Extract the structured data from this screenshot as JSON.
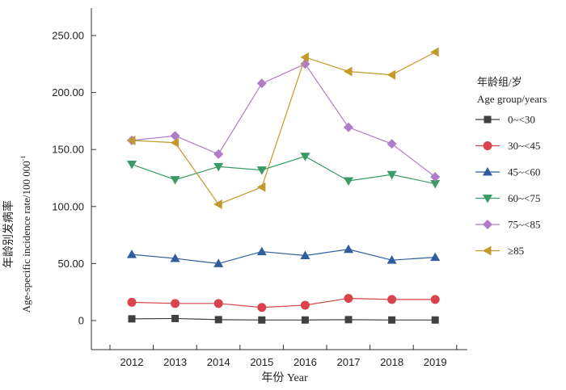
{
  "chart_data": {
    "type": "line",
    "xlabel": "年份 Year",
    "ylabel_cn": "年龄别发病率",
    "ylabel_en": "Age-specific incidence rate/100 000",
    "ylabel_sup": "-1",
    "x": [
      "2012",
      "2013",
      "2014",
      "2015",
      "2016",
      "2017",
      "2018",
      "2019"
    ],
    "ylim": [
      -25,
      275
    ],
    "yticks": [
      0,
      50,
      100,
      150,
      200,
      250
    ],
    "ytick_labels": [
      "0",
      "50.00",
      "100.00",
      "150.00",
      "200.00",
      "250.00"
    ],
    "grid": false,
    "legend": {
      "placement": "right",
      "title_cn": "年龄组/岁",
      "title_en": "Age group/years"
    },
    "series": [
      {
        "name": "0~<30",
        "marker": "square",
        "color": "#404040",
        "values": [
          1.5,
          1.8,
          0.8,
          0.5,
          0.5,
          0.8,
          0.5,
          0.5
        ]
      },
      {
        "name": "30~<45",
        "marker": "circle",
        "color": "#d9434b",
        "values": [
          16,
          15,
          15,
          11.5,
          13.5,
          19.5,
          18.5,
          18.5
        ]
      },
      {
        "name": "45~<60",
        "marker": "triangle-up",
        "color": "#2f5d9e",
        "values": [
          58,
          54.5,
          50,
          60.5,
          57,
          62.5,
          53,
          55.5
        ]
      },
      {
        "name": "60~<75",
        "marker": "triangle-down",
        "color": "#3a9a64",
        "values": [
          137,
          123.5,
          135,
          132,
          144,
          122.5,
          128,
          120
        ]
      },
      {
        "name": "75~<85",
        "marker": "diamond",
        "color": "#b07cc6",
        "values": [
          158,
          162,
          146,
          208,
          225,
          169.5,
          155,
          126
        ]
      },
      {
        "name": "≥85",
        "marker": "triangle-left",
        "color": "#c29b2c",
        "values": [
          158,
          156,
          102,
          117,
          231,
          218.5,
          215.5,
          235.5
        ]
      }
    ]
  }
}
